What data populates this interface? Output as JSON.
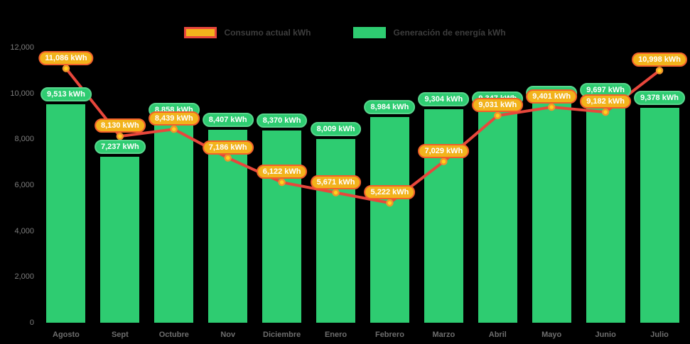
{
  "chart_data": {
    "type": "bar",
    "subtype": "bar-with-line-overlay",
    "title": "",
    "categories": [
      "Agosto",
      "Sept",
      "Octubre",
      "Nov",
      "Diciembre",
      "Enero",
      "Febrero",
      "Marzo",
      "Abril",
      "Mayo",
      "Junio",
      "Julio"
    ],
    "series": [
      {
        "name": "Consumo actual kWh",
        "type": "line",
        "values": [
          11086,
          8130,
          8439,
          7186,
          6122,
          5671,
          5222,
          7029,
          9031,
          9401,
          9182,
          10998
        ],
        "labels": [
          "11,086 kWh",
          "8,130 kWh",
          "8,439 kWh",
          "7,186 kWh",
          "6,122 kWh",
          "5,671 kWh",
          "5,222 kWh",
          "7,029 kWh",
          "9,031 kWh",
          "9,401 kWh",
          "9,182 kWh",
          "10,998 kWh"
        ]
      },
      {
        "name": "Generación de energía kWh",
        "type": "bar",
        "values": [
          9513,
          7237,
          8858,
          8407,
          8370,
          8009,
          8984,
          9304,
          9347,
          9578,
          9697,
          9378
        ],
        "labels": [
          "9,513 kWh",
          "7,237 kWh",
          "8,858 kWh",
          "8,407 kWh",
          "8,370 kWh",
          "8,009 kWh",
          "8,984 kWh",
          "9,304 kWh",
          "9,347 kWh",
          "9,578 kWh",
          "9,697 kWh",
          "9,378 kWh"
        ]
      }
    ],
    "ylim": [
      0,
      12000
    ],
    "ytick_step": 2000,
    "yticks": [
      "0",
      "2,000",
      "4,000",
      "6,000",
      "8,000",
      "10,000",
      "12,000"
    ],
    "xlabel": "",
    "ylabel": "",
    "grid": false,
    "legend_position": "top"
  },
  "colors": {
    "background": "#000000",
    "bar": "#2ecc71",
    "bar_badge_border": "#57d68c",
    "line": "#e8473c",
    "line_badge_fill": "#f2b31c",
    "line_badge_border": "#f2602b",
    "marker_fill": "#ffd21e",
    "marker_stroke": "#f2952b",
    "axis_text": "#7d7d7d",
    "legend_text": "#3d3d3d",
    "badge_text": "#ffffff"
  }
}
